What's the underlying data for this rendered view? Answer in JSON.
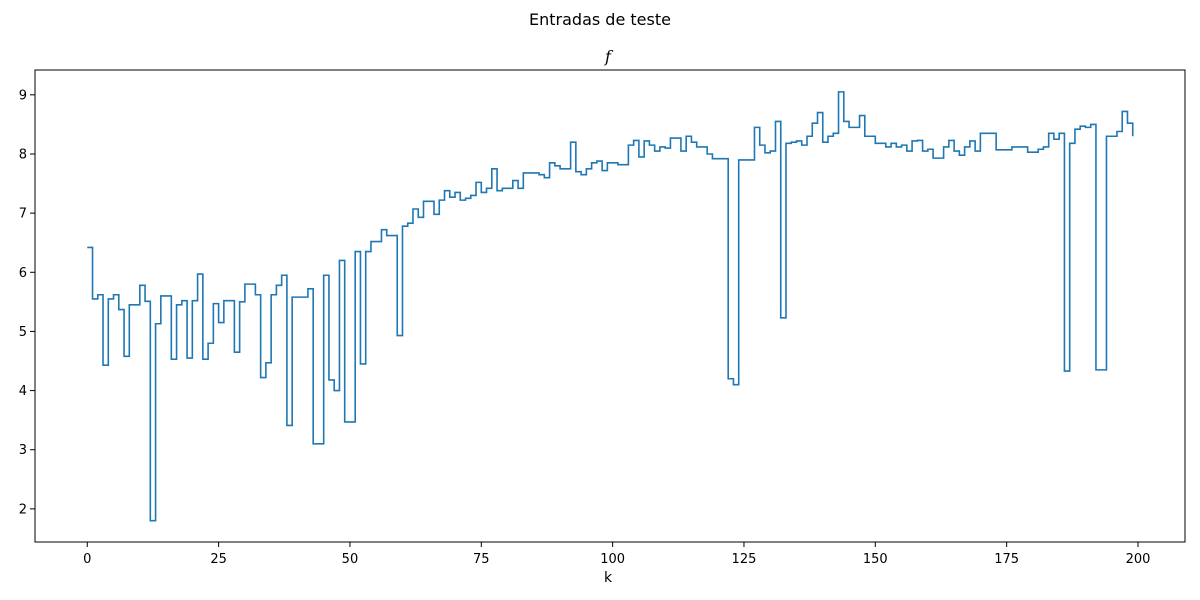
{
  "chart_data": {
    "type": "line",
    "drawstyle": "steps-post",
    "figure_title": "Entradas de teste",
    "title": "f",
    "xlabel": "k",
    "ylabel": "",
    "xlim": [
      -9.95,
      208.95
    ],
    "ylim": [
      1.44,
      9.42
    ],
    "xticks": [
      0,
      25,
      50,
      75,
      100,
      125,
      150,
      175,
      200
    ],
    "yticks": [
      2,
      3,
      4,
      5,
      6,
      7,
      8,
      9
    ],
    "grid": false,
    "legend": "none",
    "series": [
      {
        "color": "#1f77b4",
        "x": [
          0,
          1,
          2,
          3,
          4,
          5,
          6,
          7,
          8,
          9,
          10,
          11,
          12,
          13,
          14,
          15,
          16,
          17,
          18,
          19,
          20,
          21,
          22,
          23,
          24,
          25,
          26,
          27,
          28,
          29,
          30,
          31,
          32,
          33,
          34,
          35,
          36,
          37,
          38,
          39,
          40,
          41,
          42,
          43,
          44,
          45,
          46,
          47,
          48,
          49,
          50,
          51,
          52,
          53,
          54,
          55,
          56,
          57,
          58,
          59,
          60,
          61,
          62,
          63,
          64,
          65,
          66,
          67,
          68,
          69,
          70,
          71,
          72,
          73,
          74,
          75,
          76,
          77,
          78,
          79,
          80,
          81,
          82,
          83,
          84,
          85,
          86,
          87,
          88,
          89,
          90,
          91,
          92,
          93,
          94,
          95,
          96,
          97,
          98,
          99,
          100,
          101,
          102,
          103,
          104,
          105,
          106,
          107,
          108,
          109,
          110,
          111,
          112,
          113,
          114,
          115,
          116,
          117,
          118,
          119,
          120,
          121,
          122,
          123,
          124,
          125,
          126,
          127,
          128,
          129,
          130,
          131,
          132,
          133,
          134,
          135,
          136,
          137,
          138,
          139,
          140,
          141,
          142,
          143,
          144,
          145,
          146,
          147,
          148,
          149,
          150,
          151,
          152,
          153,
          154,
          155,
          156,
          157,
          158,
          159,
          160,
          161,
          162,
          163,
          164,
          165,
          166,
          167,
          168,
          169,
          170,
          171,
          172,
          173,
          174,
          175,
          176,
          177,
          178,
          179,
          180,
          181,
          182,
          183,
          184,
          185,
          186,
          187,
          188,
          189,
          190,
          191,
          192,
          193,
          194,
          195,
          196,
          197,
          198,
          199
        ],
        "y": [
          6.42,
          5.55,
          5.62,
          4.43,
          5.55,
          5.62,
          5.37,
          4.58,
          5.45,
          5.45,
          5.78,
          5.51,
          1.8,
          5.13,
          5.6,
          5.6,
          4.53,
          5.45,
          5.52,
          4.55,
          5.52,
          5.97,
          4.53,
          4.8,
          5.47,
          5.15,
          5.52,
          5.52,
          4.65,
          5.5,
          5.8,
          5.8,
          5.62,
          4.22,
          4.47,
          5.62,
          5.78,
          5.95,
          3.41,
          5.58,
          5.58,
          5.58,
          5.72,
          3.1,
          3.1,
          5.95,
          4.18,
          4.0,
          6.2,
          3.47,
          3.47,
          6.35,
          4.45,
          6.35,
          6.52,
          6.52,
          6.72,
          6.62,
          6.62,
          4.93,
          6.78,
          6.83,
          7.07,
          6.93,
          7.2,
          7.2,
          6.98,
          7.22,
          7.38,
          7.27,
          7.35,
          7.22,
          7.25,
          7.3,
          7.52,
          7.35,
          7.42,
          7.75,
          7.38,
          7.42,
          7.42,
          7.55,
          7.42,
          7.68,
          7.68,
          7.68,
          7.65,
          7.6,
          7.85,
          7.8,
          7.75,
          7.75,
          8.2,
          7.7,
          7.65,
          7.75,
          7.85,
          7.88,
          7.72,
          7.85,
          7.85,
          7.82,
          7.82,
          8.15,
          8.23,
          7.95,
          8.22,
          8.15,
          8.05,
          8.12,
          8.1,
          8.27,
          8.27,
          8.05,
          8.3,
          8.2,
          8.12,
          8.12,
          8.0,
          7.92,
          7.92,
          7.92,
          4.2,
          4.1,
          7.9,
          7.9,
          7.9,
          8.45,
          8.15,
          8.02,
          8.05,
          8.55,
          5.23,
          8.18,
          8.2,
          8.22,
          8.15,
          8.3,
          8.52,
          8.7,
          8.2,
          8.3,
          8.35,
          9.05,
          8.55,
          8.45,
          8.45,
          8.65,
          8.3,
          8.3,
          8.18,
          8.18,
          8.12,
          8.18,
          8.12,
          8.15,
          8.05,
          8.22,
          8.23,
          8.05,
          8.08,
          7.93,
          7.93,
          8.12,
          8.23,
          8.05,
          7.98,
          8.12,
          8.22,
          8.05,
          8.35,
          8.35,
          8.35,
          8.07,
          8.07,
          8.07,
          8.12,
          8.12,
          8.12,
          8.03,
          8.03,
          8.08,
          8.12,
          8.35,
          8.25,
          8.35,
          4.33,
          8.18,
          8.42,
          8.47,
          8.45,
          8.5,
          4.35,
          4.35,
          8.3,
          8.3,
          8.38,
          8.72,
          8.52,
          8.3
        ]
      }
    ]
  }
}
